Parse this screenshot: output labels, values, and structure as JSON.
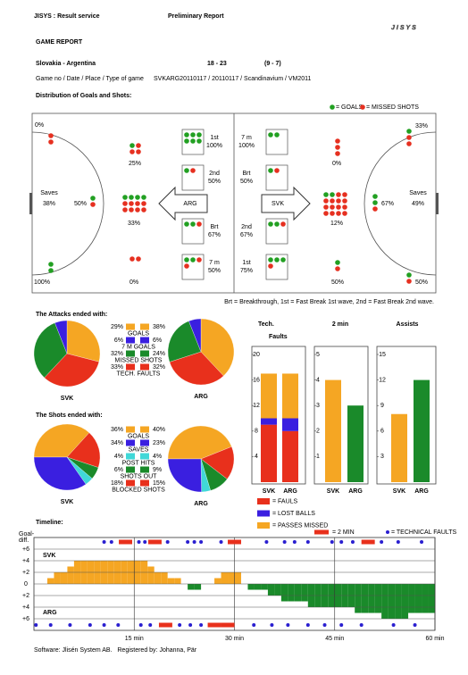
{
  "header": {
    "service": "JISYS : Result service",
    "status": "Preliminary Report",
    "logo": "JISYS"
  },
  "title": "GAME REPORT",
  "match": {
    "teams": "Slovakia - Argentina",
    "score": "18 - 23",
    "halftime": "(9 - 7)"
  },
  "info": "Game no / Date / Place / Type of game",
  "info_value": "SVKARG20110117 / 20110117 / Scandinavium / VM2011",
  "distribution": {
    "title": "Distribution of Goals and Shots:",
    "legend_goals": "= GOALS",
    "legend_missed": "= MISSED SHOTS",
    "goal_color": "#22a022",
    "miss_color": "#e63020",
    "left": {
      "saves_label": "Saves",
      "saves": "38%",
      "arrow": "ARG",
      "zones": [
        {
          "pct": "0%",
          "goals": 0,
          "misses": 2
        },
        {
          "pct": "25%",
          "goals": 1,
          "misses": 3
        },
        {
          "pct": "50%",
          "goals": 1,
          "misses": 1
        },
        {
          "pct": "33%",
          "goals": 4,
          "misses": 8
        },
        {
          "pct": "100%",
          "goals": 2,
          "misses": 0
        },
        {
          "pct": "0%",
          "goals": 0,
          "misses": 2
        }
      ],
      "breakdown": [
        {
          "label": "1st",
          "pct": "100%",
          "goals": 6,
          "misses": 0
        },
        {
          "label": "2nd",
          "pct": "50%",
          "goals": 1,
          "misses": 1
        },
        {
          "label": "Brt",
          "pct": "67%",
          "goals": 2,
          "misses": 1
        },
        {
          "label": "7 m",
          "pct": "50%",
          "goals": 2,
          "misses": 2
        }
      ]
    },
    "right": {
      "saves_label": "Saves",
      "saves": "49%",
      "arrow": "SVK",
      "zones": [
        {
          "pct": "0%",
          "goals": 0,
          "misses": 3
        },
        {
          "pct": "33%",
          "goals": 1,
          "misses": 2
        },
        {
          "pct": "12%",
          "goals": 2,
          "misses": 14
        },
        {
          "pct": "67%",
          "goals": 2,
          "misses": 1
        },
        {
          "pct": "50%",
          "goals": 1,
          "misses": 1
        },
        {
          "pct": "50%",
          "goals": 1,
          "misses": 1
        }
      ],
      "breakdown": [
        {
          "label": "7 m",
          "pct": "100%",
          "goals": 2,
          "misses": 0
        },
        {
          "label": "Brt",
          "pct": "50%",
          "goals": 1,
          "misses": 1
        },
        {
          "label": "2nd",
          "pct": "67%",
          "goals": 2,
          "misses": 1
        },
        {
          "label": "1st",
          "pct": "75%",
          "goals": 3,
          "misses": 1
        }
      ]
    },
    "note": "Brt = Breakthrough, 1st = Fast Break 1st wave, 2nd = Fast Break 2nd wave."
  },
  "attacks": {
    "type": "pie",
    "title": "The Attacks ended with:",
    "categories": [
      "GOALS",
      "7 M GOALS",
      "MISSED SHOTS",
      "TECH. FAULTS"
    ],
    "colors": [
      "#f5a623",
      "#3a1fe0",
      "#1a8a2a",
      "#e8301c"
    ],
    "series": [
      {
        "name": "SVK",
        "values": [
          29,
          6,
          32,
          33
        ],
        "value_labels": [
          "29%",
          "6%",
          "32%",
          "33%"
        ]
      },
      {
        "name": "ARG",
        "values": [
          38,
          6,
          24,
          32
        ],
        "value_labels": [
          "38%",
          "6%",
          "24%",
          "32%"
        ]
      }
    ]
  },
  "shots": {
    "type": "pie",
    "title": "The Shots ended with:",
    "categories": [
      "GOALS",
      "SAVES",
      "POST HITS",
      "SHOTS OUT",
      "BLOCKED SHOTS"
    ],
    "colors": [
      "#f5a623",
      "#3a1fe0",
      "#40d8d8",
      "#1a8a2a",
      "#e8301c"
    ],
    "series": [
      {
        "name": "SVK",
        "values": [
          36,
          34,
          4,
          6,
          18
        ],
        "value_labels": [
          "36%",
          "34%",
          "4%",
          "6%",
          "18%"
        ]
      },
      {
        "name": "ARG",
        "values": [
          40,
          23,
          4,
          9,
          15
        ],
        "value_labels": [
          "40%",
          "23%",
          "4%",
          "9%",
          "15%"
        ]
      }
    ]
  },
  "tech_faults": {
    "type": "bar",
    "title_lines": [
      "Tech.",
      "Faults"
    ],
    "categories": [
      "SVK",
      "ARG"
    ],
    "series": [
      {
        "name": "= FAULS",
        "color": "#e8301c",
        "values": [
          9,
          8
        ]
      },
      {
        "name": "= LOST BALLS",
        "color": "#3a1fe0",
        "values": [
          1,
          2
        ]
      },
      {
        "name": "= PASSES MISSED",
        "color": "#f5a623",
        "values": [
          7,
          7
        ]
      }
    ],
    "ylim": [
      0,
      20
    ],
    "yticks": [
      4,
      8,
      12,
      16,
      20
    ]
  },
  "two_min": {
    "type": "bar",
    "title": "2 min",
    "categories": [
      "SVK",
      "ARG"
    ],
    "values": [
      4,
      3
    ],
    "colors": [
      "#f5a623",
      "#1a8a2a"
    ],
    "ylim": [
      0,
      5
    ],
    "yticks": [
      1,
      2,
      3,
      4,
      5
    ]
  },
  "assists": {
    "type": "bar",
    "title": "Assists",
    "categories": [
      "SVK",
      "ARG"
    ],
    "values": [
      8,
      12
    ],
    "colors": [
      "#f5a623",
      "#1a8a2a"
    ],
    "ylim": [
      0,
      15
    ],
    "yticks": [
      3,
      6,
      9,
      12,
      15
    ]
  },
  "timeline": {
    "type": "bar",
    "title": "Timeline:",
    "ylabel": [
      "Goal-",
      "diff."
    ],
    "teams": [
      "SVK",
      "ARG"
    ],
    "colors": [
      "#f5a623",
      "#1a8a2a"
    ],
    "legend_two_min": "= 2 MIN",
    "legend_tech": "= TECHNICAL FAULTS",
    "two_min_color": "#e8301c",
    "tech_color": "#2a1fd0",
    "x": [
      0,
      1,
      2,
      3,
      4,
      5,
      6,
      7,
      8,
      9,
      10,
      11,
      12,
      13,
      14,
      15,
      16,
      17,
      18,
      19,
      20,
      21,
      22,
      23,
      24,
      25,
      26,
      27,
      28,
      29,
      30,
      31,
      32,
      33,
      34,
      35,
      36,
      37,
      38,
      39,
      40,
      41,
      42,
      43,
      44,
      45,
      46,
      47,
      48,
      49,
      50,
      51,
      52,
      53,
      54,
      55,
      56,
      57,
      58,
      59
    ],
    "values": [
      0,
      0,
      1,
      2,
      2,
      3,
      4,
      4,
      4,
      4,
      4,
      4,
      4,
      4,
      4,
      4,
      4,
      3,
      2,
      2,
      1,
      1,
      0,
      -1,
      -1,
      0,
      0,
      1,
      2,
      2,
      2,
      0,
      -1,
      -1,
      -1,
      -2,
      -2,
      -3,
      -3,
      -3,
      -3,
      -4,
      -4,
      -4,
      -4,
      -4,
      -4,
      -4,
      -5,
      -5,
      -5,
      -5,
      -6,
      -6,
      -6,
      -6,
      -5,
      -5,
      -5,
      -5
    ],
    "xlim": [
      0,
      60
    ],
    "xticks": [
      {
        "value": 15,
        "label": "15 min"
      },
      {
        "value": 30,
        "label": "30 min"
      },
      {
        "value": 45,
        "label": "45 min"
      },
      {
        "value": 60,
        "label": "60 min"
      }
    ],
    "ylim": [
      -8,
      8
    ],
    "yticks": [
      {
        "value": 6,
        "label": "+6"
      },
      {
        "value": 4,
        "label": "+4"
      },
      {
        "value": 2,
        "label": "+2"
      },
      0,
      {
        "value": -2,
        "label": "+2"
      },
      {
        "value": -4,
        "label": "+4"
      },
      {
        "value": -6,
        "label": "+6"
      }
    ],
    "svk_events": {
      "tech_faults": [
        10.5,
        11.6,
        15.7,
        16.6,
        20,
        23,
        24,
        25,
        28,
        34.8,
        37.5,
        39,
        41,
        44.6,
        46,
        47.7,
        52,
        54.5,
        58
      ],
      "two_min": [
        12.7,
        17.1,
        29,
        49
      ]
    },
    "arg_events": {
      "tech_faults": [
        0.3,
        2.5,
        5.4,
        8.4,
        10.5,
        12.6,
        16,
        17.4,
        21.8,
        23.4,
        25,
        32.9,
        35.6,
        38,
        41,
        43.5,
        46,
        49,
        53.8,
        57
      ],
      "two_min": [
        18.7,
        26,
        28
      ]
    }
  },
  "footer": "Software: Jlisén System AB.   Registered by: Johanna, Pär"
}
